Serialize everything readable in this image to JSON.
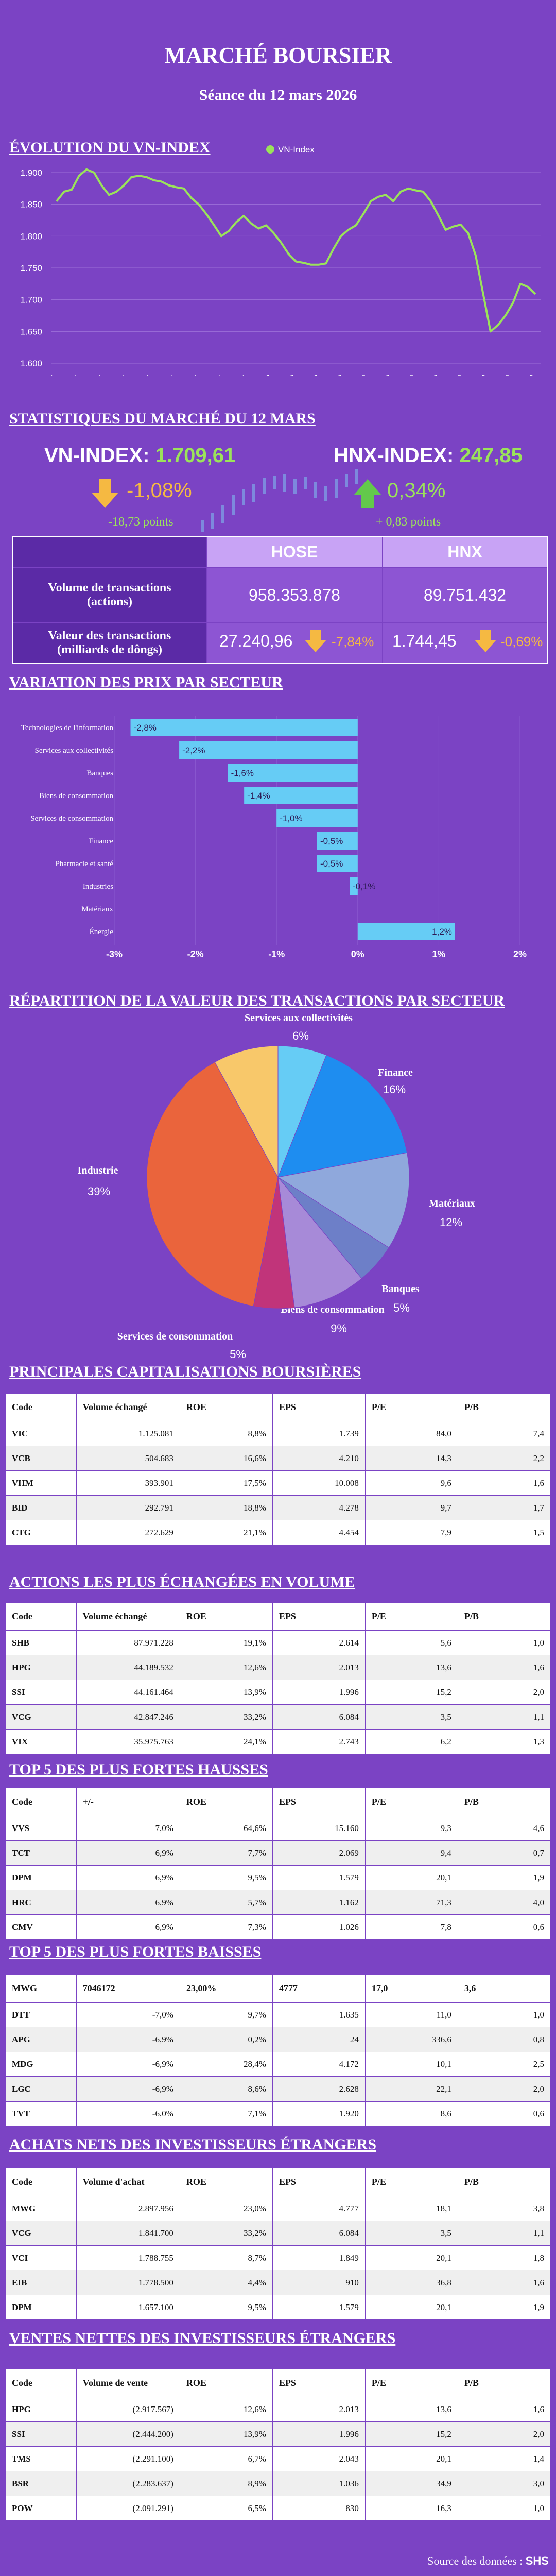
{
  "header": {
    "title": "MARCHÉ BOURSIER",
    "subtitle": "Séance du 12 mars 2026"
  },
  "sections": {
    "vn_chart": "ÉVOLUTION DU VN-INDEX",
    "stats": "STATISTIQUES DU MARCHÉ DU 12 MARS",
    "sector": "VARIATION DES PRIX PAR SECTEUR",
    "pie": "RÉPARTITION DE LA VALEUR DES TRANSACTIONS PAR SECTEUR",
    "caps": "PRINCIPALES CAPITALISATIONS BOURSIÈRES",
    "volume": "ACTIONS LES PLUS ÉCHANGÉES EN VOLUME",
    "gainers": "TOP 5 DES PLUS FORTES HAUSSES",
    "losers": "TOP 5 DES PLUS FORTES BAISSES",
    "net_buy": "ACHATS NETS DES INVESTISSEURS ÉTRANGERS",
    "net_sell": "VENTES NETTES DES INVESTISSEURS ÉTRANGERS"
  },
  "stats": {
    "vn_label": "VN-INDEX: ",
    "vn_value": "1.709,61",
    "vn_change": "-1,08%",
    "vn_points": "-18,73 points",
    "hnx_label": "HNX-INDEX: ",
    "hnx_value": "247,85",
    "hnx_change": "0,34%",
    "hnx_points": "+ 0,83  points",
    "col_hose": "HOSE",
    "col_hnx": "HNX",
    "row1_label": "Volume de transactions (actions)",
    "row1_hose": "958.353.878",
    "row1_hnx": "89.751.432",
    "row2_label": "Valeur des transactions (milliards de dôngs)",
    "row2_hose": "27.240,96",
    "row2_hose_change": "-7,84%",
    "row2_hnx": "1.744,45",
    "row2_hnx_change": "-0,69%"
  },
  "colors": {
    "background": "#7b43c4",
    "accent_green": "#9be35a",
    "down_orange": "#f5b942",
    "bar_blue": "#66ccf5"
  },
  "chart_data": [
    {
      "type": "line",
      "legend": "VN-Index",
      "legend_position": "top",
      "x": [
        "08/1",
        "12/1",
        "14/1",
        "16/1",
        "20/1",
        "22/1",
        "26/1",
        "28/1",
        "30/1",
        "3/2",
        "5/2",
        "9/2",
        "11/2",
        "13/2",
        "24/2",
        "26/2",
        "2/3",
        "4/3",
        "6/3",
        "10/3",
        "12/03"
      ],
      "points": [
        1855,
        1870,
        1873,
        1895,
        1905,
        1900,
        1880,
        1865,
        1870,
        1880,
        1893,
        1895,
        1893,
        1888,
        1886,
        1880,
        1877,
        1875,
        1860,
        1850,
        1835,
        1818,
        1800,
        1808,
        1822,
        1832,
        1820,
        1812,
        1817,
        1805,
        1790,
        1772,
        1760,
        1758,
        1755,
        1755,
        1757,
        1780,
        1800,
        1810,
        1817,
        1835,
        1855,
        1862,
        1865,
        1855,
        1870,
        1875,
        1872,
        1870,
        1855,
        1833,
        1810,
        1815,
        1818,
        1805,
        1770,
        1710,
        1650,
        1660,
        1675,
        1695,
        1725,
        1720,
        1709
      ],
      "ylim": [
        1600,
        1900
      ],
      "yticks": [
        "1.600",
        "1.650",
        "1.700",
        "1.750",
        "1.800",
        "1.850",
        "1.900"
      ],
      "grid": true
    },
    {
      "type": "bar",
      "orientation": "horizontal",
      "categories": [
        "Technologies de l'information",
        "Services aux collectivités",
        "Banques",
        "Biens de consommation",
        "Services de consommation",
        "Finance",
        "Pharmacie et santé",
        "Industries",
        "Matériaux",
        "Énergie"
      ],
      "values": [
        -2.8,
        -2.2,
        -1.6,
        -1.4,
        -1.0,
        -0.5,
        -0.5,
        -0.1,
        0.0,
        1.2
      ],
      "value_labels": [
        "-2,8%",
        "-2,2%",
        "-1,6%",
        "-1,4%",
        "-1,0%",
        "-0,5%",
        "-0,5%",
        "-0,1%",
        "",
        "1,2%"
      ],
      "xlim": [
        -3,
        2
      ],
      "xticks": [
        "-3%",
        "-2%",
        "-1%",
        "0%",
        "1%",
        "2%"
      ]
    },
    {
      "type": "pie",
      "slices": [
        {
          "label": "Services aux collectivités",
          "value": 6,
          "text": "6%",
          "color": "#66ccf5"
        },
        {
          "label": "Finance",
          "value": 16,
          "text": "16%",
          "color": "#1e8df0"
        },
        {
          "label": "Matériaux",
          "value": 12,
          "text": "12%",
          "color": "#8fa8dc"
        },
        {
          "label": "Banques",
          "value": 5,
          "text": "5%",
          "color": "#6d7fc8"
        },
        {
          "label": "Biens de consommation",
          "value": 9,
          "text": "9%",
          "color": "#a78ad8"
        },
        {
          "label": "Services de consommation",
          "value": 5,
          "text": "5%",
          "color": "#c1347a"
        },
        {
          "label": "Industrie",
          "value": 39,
          "text": "39%",
          "color": "#ea643c"
        },
        {
          "label": "",
          "value": 8,
          "text": "",
          "color": "#f8c86a"
        }
      ]
    }
  ],
  "tables": {
    "caps": {
      "headers": [
        "Code",
        "Volume échangé",
        "ROE",
        "EPS",
        "P/E",
        "P/B"
      ],
      "rows": [
        [
          "VIC",
          "1.125.081",
          "8,8%",
          "1.739",
          "84,0",
          "7,4"
        ],
        [
          "VCB",
          "504.683",
          "16,6%",
          "4.210",
          "14,3",
          "2,2"
        ],
        [
          "VHM",
          "393.901",
          "17,5%",
          "10.008",
          "9,6",
          "1,6"
        ],
        [
          "BID",
          "292.791",
          "18,8%",
          "4.278",
          "9,7",
          "1,7"
        ],
        [
          "CTG",
          "272.629",
          "21,1%",
          "4.454",
          "7,9",
          "1,5"
        ]
      ]
    },
    "volume": {
      "headers": [
        "Code",
        "Volume échangé",
        "ROE",
        "EPS",
        "P/E",
        "P/B"
      ],
      "rows": [
        [
          "SHB",
          "87.971.228",
          "19,1%",
          "2.614",
          "5,6",
          "1,0"
        ],
        [
          "HPG",
          "44.189.532",
          "12,6%",
          "2.013",
          "13,6",
          "1,6"
        ],
        [
          "SSI",
          "44.161.464",
          "13,9%",
          "1.996",
          "15,2",
          "2,0"
        ],
        [
          "VCG",
          "42.847.246",
          "33,2%",
          "6.084",
          "3,5",
          "1,1"
        ],
        [
          "VIX",
          "35.975.763",
          "24,1%",
          "2.743",
          "6,2",
          "1,3"
        ]
      ]
    },
    "gainers": {
      "headers": [
        "Code",
        "+/-",
        "ROE",
        "EPS",
        "P/E",
        "P/B"
      ],
      "rows": [
        [
          "VVS",
          "7,0%",
          "64,6%",
          "15.160",
          "9,3",
          "4,6"
        ],
        [
          "TCT",
          "6,9%",
          "7,7%",
          "2.069",
          "9,4",
          "0,7"
        ],
        [
          "DPM",
          "6,9%",
          "9,5%",
          "1.579",
          "20,1",
          "1,9"
        ],
        [
          "HRC",
          "6,9%",
          "5,7%",
          "1.162",
          "71,3",
          "4,0"
        ],
        [
          "CMV",
          "6,9%",
          "7,3%",
          "1.026",
          "7,8",
          "0,6"
        ]
      ]
    },
    "losers": {
      "headers": [
        "MWG",
        "7046172",
        "23,00%",
        "4777",
        "17,0",
        "3,6"
      ],
      "rows": [
        [
          "DTT",
          "-7,0%",
          "9,7%",
          "1.635",
          "11,0",
          "1,0"
        ],
        [
          "APG",
          "-6,9%",
          "0,2%",
          "24",
          "336,6",
          "0,8"
        ],
        [
          "MDG",
          "-6,9%",
          "28,4%",
          "4.172",
          "10,1",
          "2,5"
        ],
        [
          "LGC",
          "-6,9%",
          "8,6%",
          "2.628",
          "22,1",
          "2,0"
        ],
        [
          "TVT",
          "-6,0%",
          "7,1%",
          "1.920",
          "8,6",
          "0,6"
        ]
      ]
    },
    "net_buy": {
      "headers": [
        "Code",
        "Volume d'achat",
        "ROE",
        "EPS",
        "P/E",
        "P/B"
      ],
      "rows": [
        [
          "MWG",
          "2.897.956",
          "23,0%",
          "4.777",
          "18,1",
          "3,8"
        ],
        [
          "VCG",
          "1.841.700",
          "33,2%",
          "6.084",
          "3,5",
          "1,1"
        ],
        [
          "VCI",
          "1.788.755",
          "8,7%",
          "1.849",
          "20,1",
          "1,8"
        ],
        [
          "EIB",
          "1.778.500",
          "4,4%",
          "910",
          "36,8",
          "1,6"
        ],
        [
          "DPM",
          "1.657.100",
          "9,5%",
          "1.579",
          "20,1",
          "1,9"
        ]
      ]
    },
    "net_sell": {
      "headers": [
        "Code",
        "Volume de vente",
        "ROE",
        "EPS",
        "P/E",
        "P/B"
      ],
      "rows": [
        [
          "HPG",
          "(2.917.567)",
          "12,6%",
          "2.013",
          "13,6",
          "1,6"
        ],
        [
          "SSI",
          "(2.444.200)",
          "13,9%",
          "1.996",
          "15,2",
          "2,0"
        ],
        [
          "TMS",
          "(2.291.100)",
          "6,7%",
          "2.043",
          "20,1",
          "1,4"
        ],
        [
          "BSR",
          "(2.283.637)",
          "8,9%",
          "1.036",
          "34,9",
          "3,0"
        ],
        [
          "POW",
          "(2.091.291)",
          "6,5%",
          "830",
          "16,3",
          "1,0"
        ]
      ]
    }
  },
  "footer": {
    "source": "Source des données : ",
    "source_name": "SHS"
  }
}
